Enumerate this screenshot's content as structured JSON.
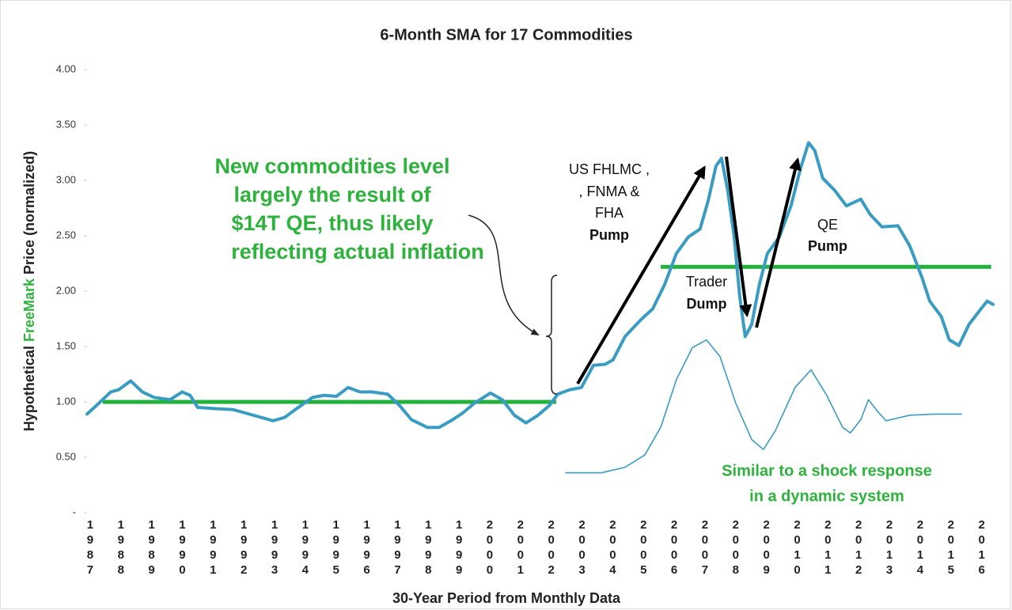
{
  "chart_data": {
    "type": "line",
    "title": "6-Month SMA for 17 Commodities",
    "x_label": "30-Year Period from Monthly Data",
    "y_label": {
      "before": "Hypothetical",
      "highlight": "FreeMark",
      "after": "Price (normalized)"
    },
    "xlim": [
      1986.9,
      2016.37
    ],
    "xticks": [
      1987,
      1988,
      1989,
      1990,
      1991,
      1992,
      1993,
      1994,
      1995,
      1996,
      1997,
      1998,
      1999,
      2000,
      2001,
      2002,
      2003,
      2004,
      2005,
      2006,
      2007,
      2008,
      2009,
      2010,
      2011,
      2012,
      2013,
      2014,
      2015,
      2016
    ],
    "ylim": [
      0,
      4
    ],
    "yticks": [
      {
        "value": 0,
        "label": "-"
      },
      {
        "value": 0.5,
        "label": "0.50"
      },
      {
        "value": 1,
        "label": "1.00"
      },
      {
        "value": 1.5,
        "label": "1.50"
      },
      {
        "value": 2,
        "label": "2.00"
      },
      {
        "value": 2.5,
        "label": "2.50"
      },
      {
        "value": 3,
        "label": "3.00"
      },
      {
        "value": 3.5,
        "label": "3.50"
      },
      {
        "value": 4,
        "label": "4.00"
      }
    ],
    "grid": false,
    "series": [
      {
        "color": "#3a9cc3",
        "line_width": 4,
        "x": [
          1986.9,
          1987.29,
          1987.67,
          1987.93,
          1988.32,
          1988.7,
          1989.09,
          1989.6,
          1989.99,
          1990.25,
          1990.5,
          1991.02,
          1991.66,
          1992.05,
          1992.56,
          1992.95,
          1993.33,
          1993.72,
          1994.23,
          1994.62,
          1995.01,
          1995.39,
          1995.78,
          1996.16,
          1996.68,
          1997.06,
          1997.45,
          1997.97,
          1998.35,
          1998.74,
          1999.12,
          1999.51,
          2000.02,
          2000.41,
          2000.8,
          2001.18,
          2001.57,
          2001.95,
          2002.21,
          2002.6,
          2002.98,
          2003.37,
          2003.76,
          2004.01,
          2004.4,
          2004.91,
          2005.3,
          2005.69,
          2006.07,
          2006.46,
          2006.84,
          2007.1,
          2007.36,
          2007.54,
          2007.74,
          2007.95,
          2008.13,
          2008.31,
          2008.52,
          2008.77,
          2009.03,
          2009.42,
          2009.8,
          2010.11,
          2010.37,
          2010.57,
          2010.83,
          2011.22,
          2011.6,
          2012.07,
          2012.38,
          2012.76,
          2013.28,
          2013.66,
          2014.05,
          2014.31,
          2014.69,
          2014.95,
          2015.26,
          2015.59,
          2015.98,
          2016.18,
          2016.37
        ],
        "values": [
          0.89,
          0.99,
          1.09,
          1.11,
          1.19,
          1.09,
          1.04,
          1.02,
          1.09,
          1.06,
          0.95,
          0.94,
          0.93,
          0.9,
          0.86,
          0.83,
          0.86,
          0.94,
          1.04,
          1.06,
          1.05,
          1.13,
          1.09,
          1.09,
          1.07,
          0.97,
          0.84,
          0.77,
          0.77,
          0.83,
          0.9,
          0.99,
          1.08,
          1.02,
          0.88,
          0.81,
          0.88,
          0.97,
          1.07,
          1.11,
          1.13,
          1.33,
          1.34,
          1.38,
          1.59,
          1.74,
          1.84,
          2.06,
          2.34,
          2.49,
          2.56,
          2.81,
          3.13,
          3.2,
          2.91,
          2.49,
          1.95,
          1.59,
          1.7,
          2.06,
          2.34,
          2.49,
          2.77,
          3.11,
          3.34,
          3.27,
          3.02,
          2.91,
          2.77,
          2.83,
          2.69,
          2.58,
          2.59,
          2.41,
          2.13,
          1.91,
          1.77,
          1.56,
          1.51,
          1.7,
          1.84,
          1.91,
          1.88
        ]
      },
      {
        "color": "#3a9cc3",
        "line_width": 1.6,
        "x": [
          2002.47,
          2003.63,
          2004.4,
          2005.04,
          2005.56,
          2006.07,
          2006.59,
          2007.05,
          2007.49,
          2008.0,
          2008.52,
          2008.9,
          2009.29,
          2009.93,
          2010.45,
          2010.96,
          2011.48,
          2011.73,
          2012.07,
          2012.32,
          2012.63,
          2012.89,
          2013.66,
          2014.44,
          2015.34
        ],
        "values": [
          0.36,
          0.36,
          0.41,
          0.52,
          0.77,
          1.2,
          1.49,
          1.56,
          1.41,
          0.99,
          0.66,
          0.57,
          0.74,
          1.13,
          1.29,
          1.06,
          0.77,
          0.72,
          0.84,
          1.02,
          0.91,
          0.83,
          0.88,
          0.89,
          0.89
        ]
      }
    ],
    "reference_lines": [
      {
        "color": "#22b13a",
        "value": 1.0,
        "x": [
          1987.41,
          2002.16
        ]
      },
      {
        "color": "#22b13a",
        "value": 2.22,
        "x": [
          2005.56,
          2016.31
        ]
      }
    ],
    "annotations": {
      "inflation": [
        "New commodities level",
        "largely the result of",
        "$14T QE, thus likely",
        "reflecting actual inflation"
      ],
      "gse": {
        "lines": [
          "US FHLMC ,",
          ", FNMA &",
          "FHA"
        ],
        "emphasis": "Pump"
      },
      "trader": {
        "lines": [
          "Trader"
        ],
        "emphasis": "Dump"
      },
      "qe": {
        "lines": [
          "QE"
        ],
        "emphasis": "Pump"
      },
      "shock": [
        "Similar to a shock response",
        "in a dynamic system"
      ]
    }
  }
}
